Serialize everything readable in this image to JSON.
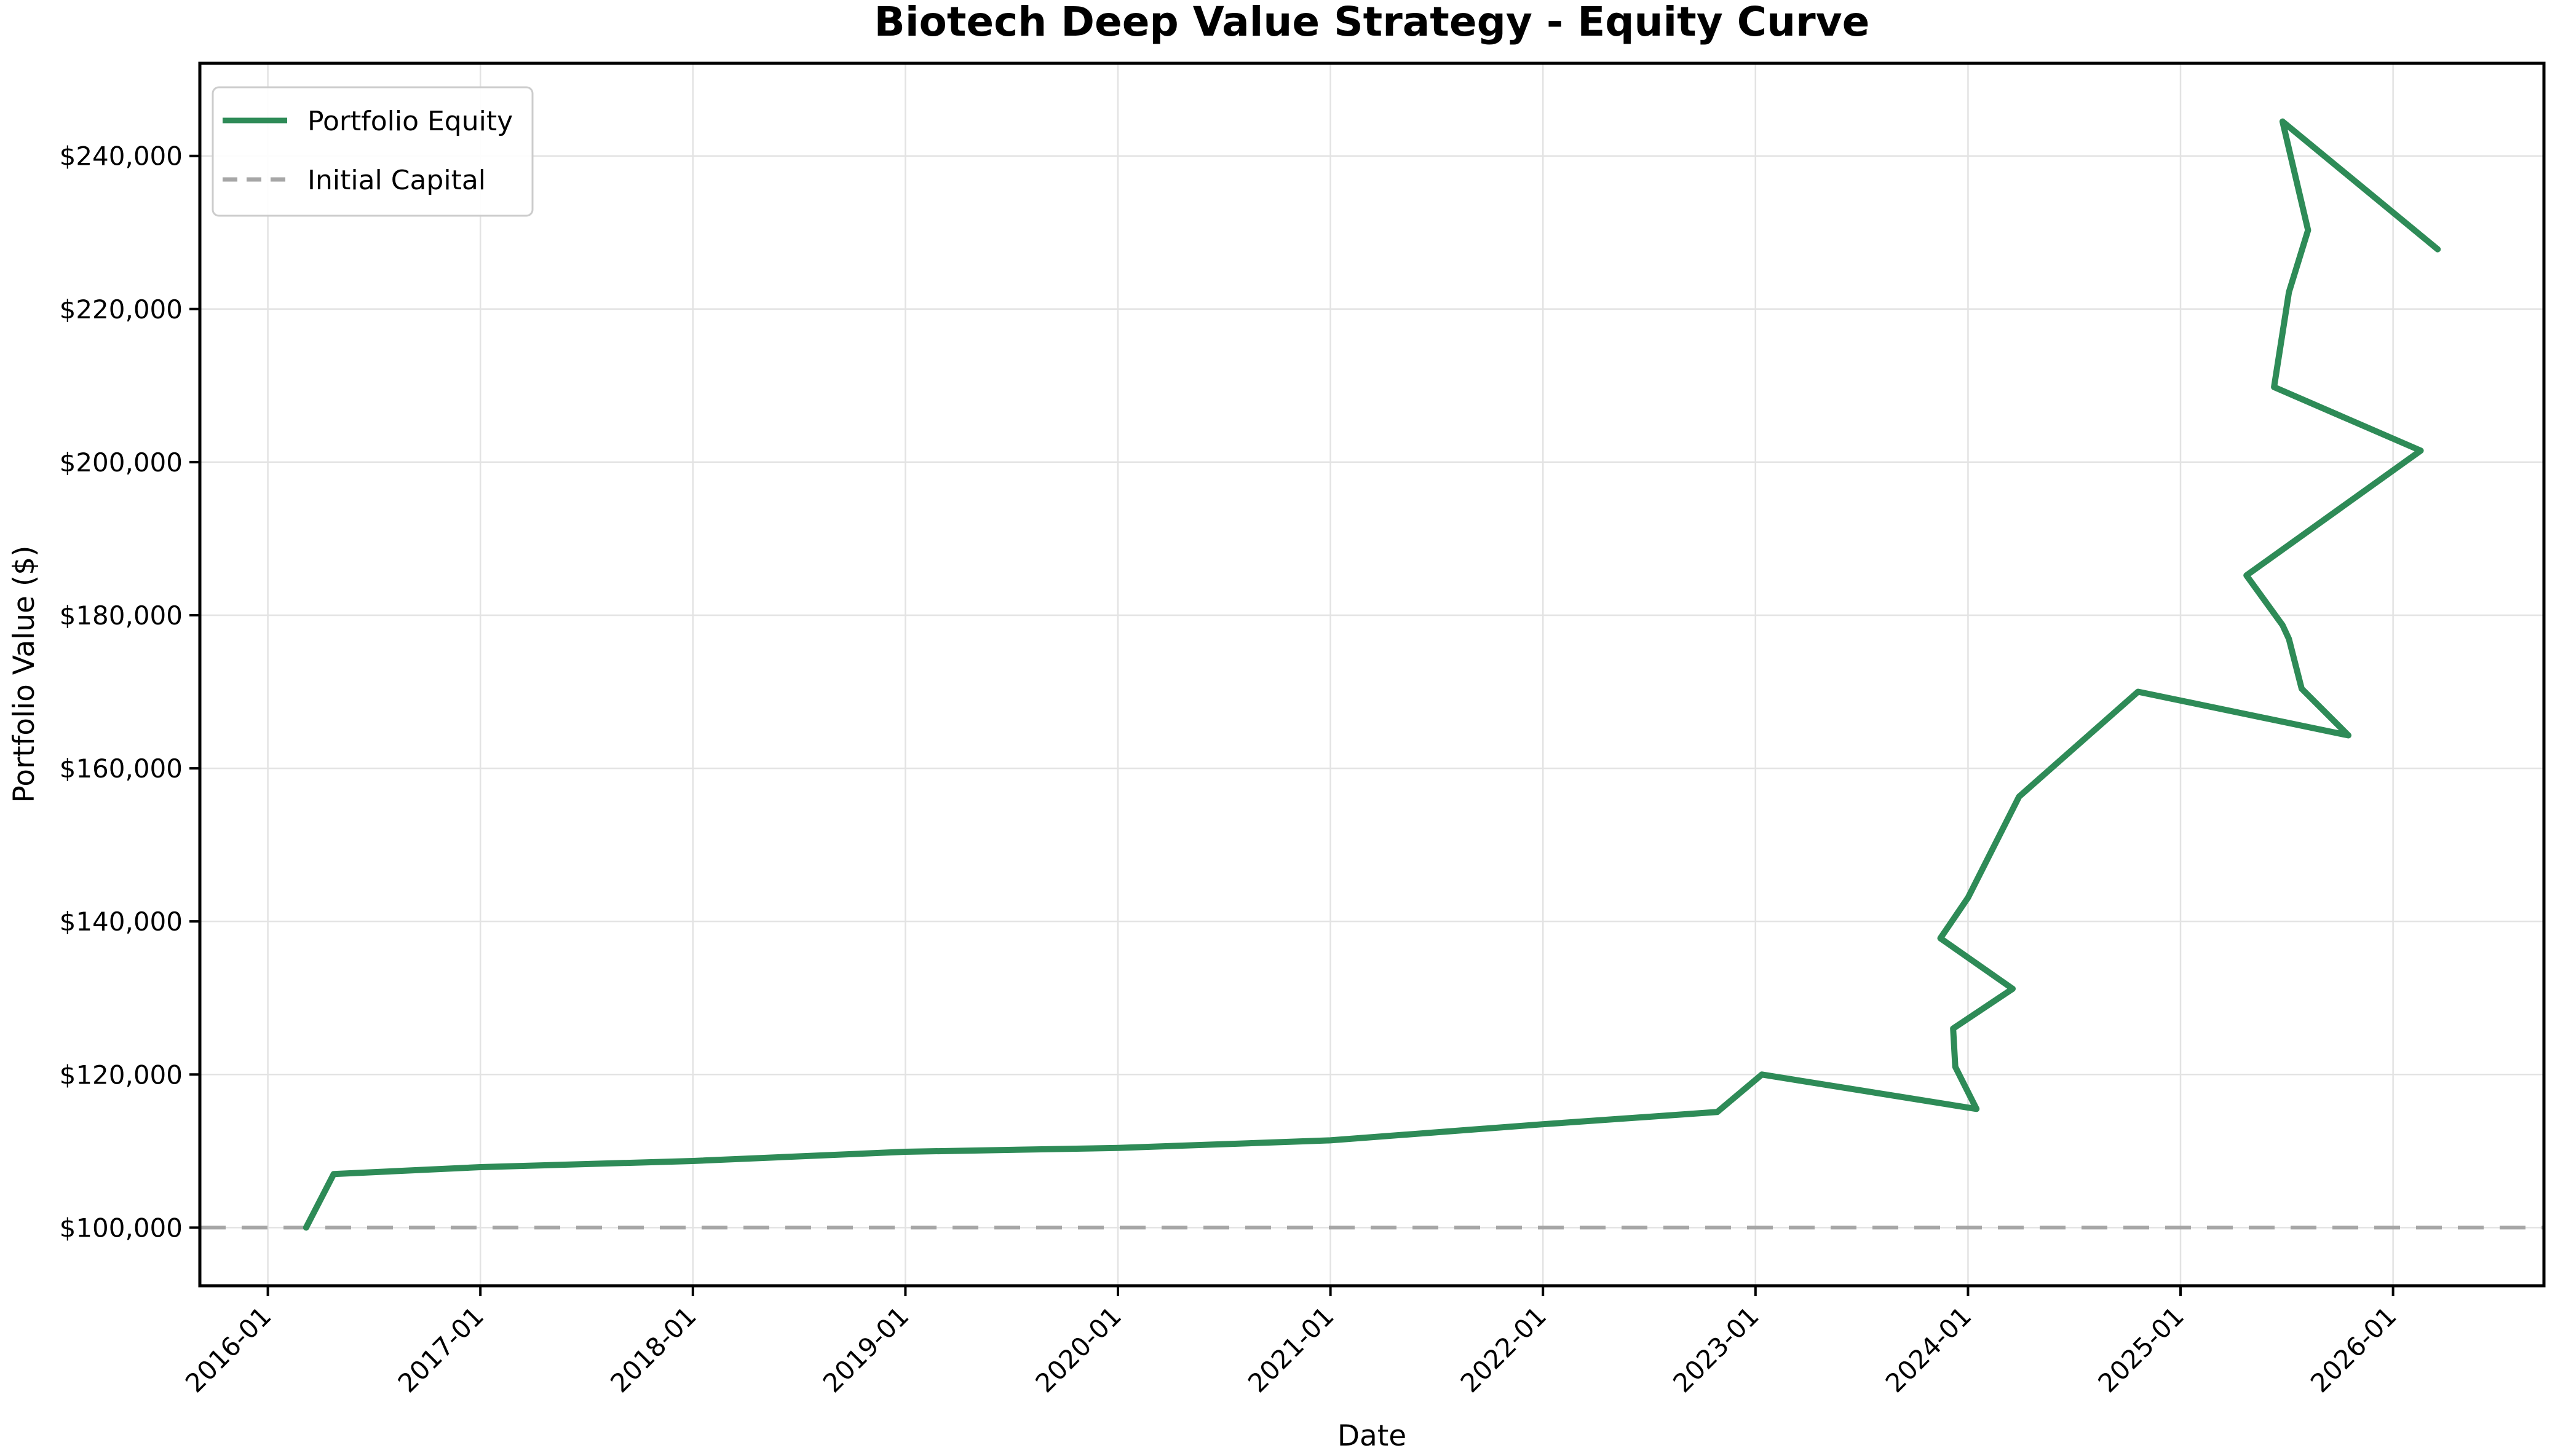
{
  "figure": {
    "title": "Biotech Deep Value Strategy - Equity Curve",
    "xlabel": "Date",
    "ylabel": "Portfolio Value ($)",
    "background_color": "#ffffff"
  },
  "legend": {
    "position": "upper left",
    "items": [
      {
        "label": "Portfolio Equity",
        "color": "#2E8B57",
        "style": "solid"
      },
      {
        "label": "Initial Capital",
        "color": "#a6a6a6",
        "style": "dashed"
      }
    ]
  },
  "chart_data": {
    "type": "line",
    "title": "Biotech Deep Value Strategy - Equity Curve",
    "xlabel": "Date",
    "ylabel": "Portfolio Value ($)",
    "grid": true,
    "legend_position": "upper left",
    "xlim": [
      2015.68,
      2026.71
    ],
    "ylim": [
      92400,
      252100
    ],
    "x_ticks": [
      {
        "t": 2016,
        "label": "2016-01"
      },
      {
        "t": 2017,
        "label": "2017-01"
      },
      {
        "t": 2018,
        "label": "2018-01"
      },
      {
        "t": 2019,
        "label": "2019-01"
      },
      {
        "t": 2020,
        "label": "2020-01"
      },
      {
        "t": 2021,
        "label": "2021-01"
      },
      {
        "t": 2022,
        "label": "2022-01"
      },
      {
        "t": 2023,
        "label": "2023-01"
      },
      {
        "t": 2024,
        "label": "2024-01"
      },
      {
        "t": 2025,
        "label": "2025-01"
      },
      {
        "t": 2026,
        "label": "2026-01"
      }
    ],
    "y_ticks": [
      {
        "value": 100000,
        "label": "$100,000"
      },
      {
        "value": 120000,
        "label": "$120,000"
      },
      {
        "value": 140000,
        "label": "$140,000"
      },
      {
        "value": 160000,
        "label": "$160,000"
      },
      {
        "value": 180000,
        "label": "$180,000"
      },
      {
        "value": 200000,
        "label": "$200,000"
      },
      {
        "value": 220000,
        "label": "$220,000"
      },
      {
        "value": 240000,
        "label": "$240,000"
      }
    ],
    "series": [
      {
        "name": "Portfolio Equity",
        "color": "#2E8B57",
        "line_width": 10,
        "points": [
          [
            2016.18,
            100000
          ],
          [
            2016.31,
            107000
          ],
          [
            2017.0,
            107900
          ],
          [
            2018.0,
            108700
          ],
          [
            2019.0,
            109900
          ],
          [
            2020.0,
            110400
          ],
          [
            2021.0,
            111400
          ],
          [
            2022.0,
            113500
          ],
          [
            2022.82,
            115100
          ],
          [
            2023.03,
            120000
          ],
          [
            2024.04,
            115500
          ],
          [
            2023.94,
            121000
          ],
          [
            2023.93,
            126000
          ],
          [
            2024.21,
            131200
          ],
          [
            2023.87,
            137800
          ],
          [
            2024.0,
            143100
          ],
          [
            2024.24,
            156300
          ],
          [
            2024.8,
            170000
          ],
          [
            2025.79,
            164300
          ],
          [
            2025.57,
            170400
          ],
          [
            2025.51,
            176900
          ],
          [
            2025.48,
            178700
          ],
          [
            2025.31,
            185200
          ],
          [
            2026.13,
            201500
          ],
          [
            2025.44,
            209800
          ],
          [
            2025.51,
            222200
          ],
          [
            2025.6,
            230300
          ],
          [
            2025.48,
            244500
          ],
          [
            2026.21,
            227800
          ]
        ]
      }
    ],
    "reference_lines": [
      {
        "name": "Initial Capital",
        "value": 100000,
        "color": "#a6a6a6",
        "style": "dashed",
        "line_width": 6
      }
    ]
  }
}
